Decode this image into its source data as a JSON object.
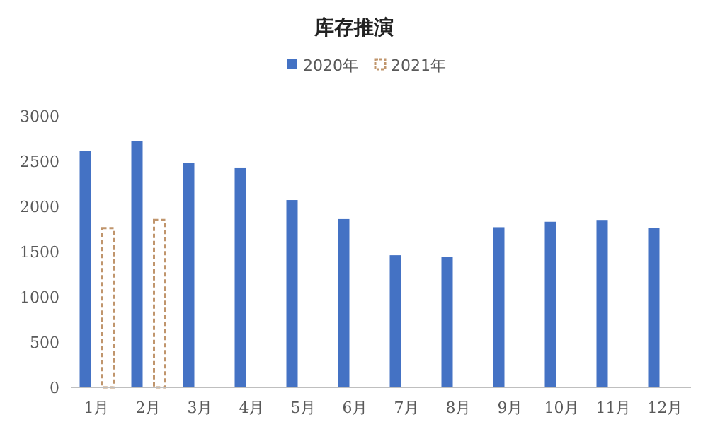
{
  "chart_data": {
    "type": "bar",
    "title": "库存推演",
    "categories": [
      "1月",
      "2月",
      "3月",
      "4月",
      "5月",
      "6月",
      "7月",
      "8月",
      "9月",
      "10月",
      "11月",
      "12月"
    ],
    "series": [
      {
        "name": "2020年",
        "color": "#4472c4",
        "values": [
          2610,
          2720,
          2480,
          2430,
          2070,
          1860,
          1460,
          1440,
          1770,
          1830,
          1850,
          1760
        ]
      },
      {
        "name": "2021年",
        "color": "#c0956c",
        "line_style": "dashed",
        "values": [
          1760,
          1850,
          null,
          null,
          null,
          null,
          null,
          null,
          null,
          null,
          null,
          null
        ]
      }
    ],
    "ylim": [
      0,
      3000
    ],
    "yticks": [
      0,
      500,
      1000,
      1500,
      2000,
      2500,
      3000
    ],
    "grid": false,
    "legend": "top"
  }
}
